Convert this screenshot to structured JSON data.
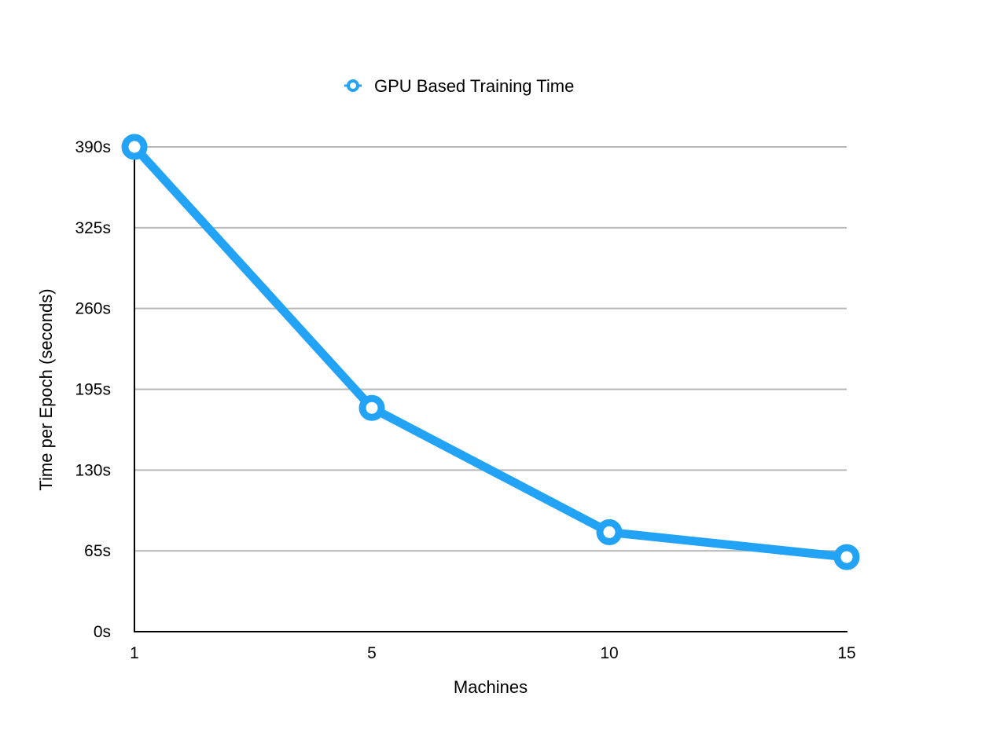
{
  "chart_data": {
    "type": "line",
    "title": "",
    "xlabel": "Machines",
    "ylabel": "Time per Epoch (seconds)",
    "categories": [
      "1",
      "5",
      "10",
      "15"
    ],
    "series": [
      {
        "name": "GPU Based Training Time",
        "color": "#22a3f5",
        "values": [
          390,
          180,
          80,
          60
        ]
      }
    ],
    "y_ticks": [
      0,
      65,
      130,
      195,
      260,
      325,
      390
    ],
    "y_tick_labels": [
      "0s",
      "65s",
      "130s",
      "195s",
      "260s",
      "325s",
      "390s"
    ],
    "ylim": [
      0,
      390
    ],
    "grid": true,
    "legend_position": "top-center"
  }
}
